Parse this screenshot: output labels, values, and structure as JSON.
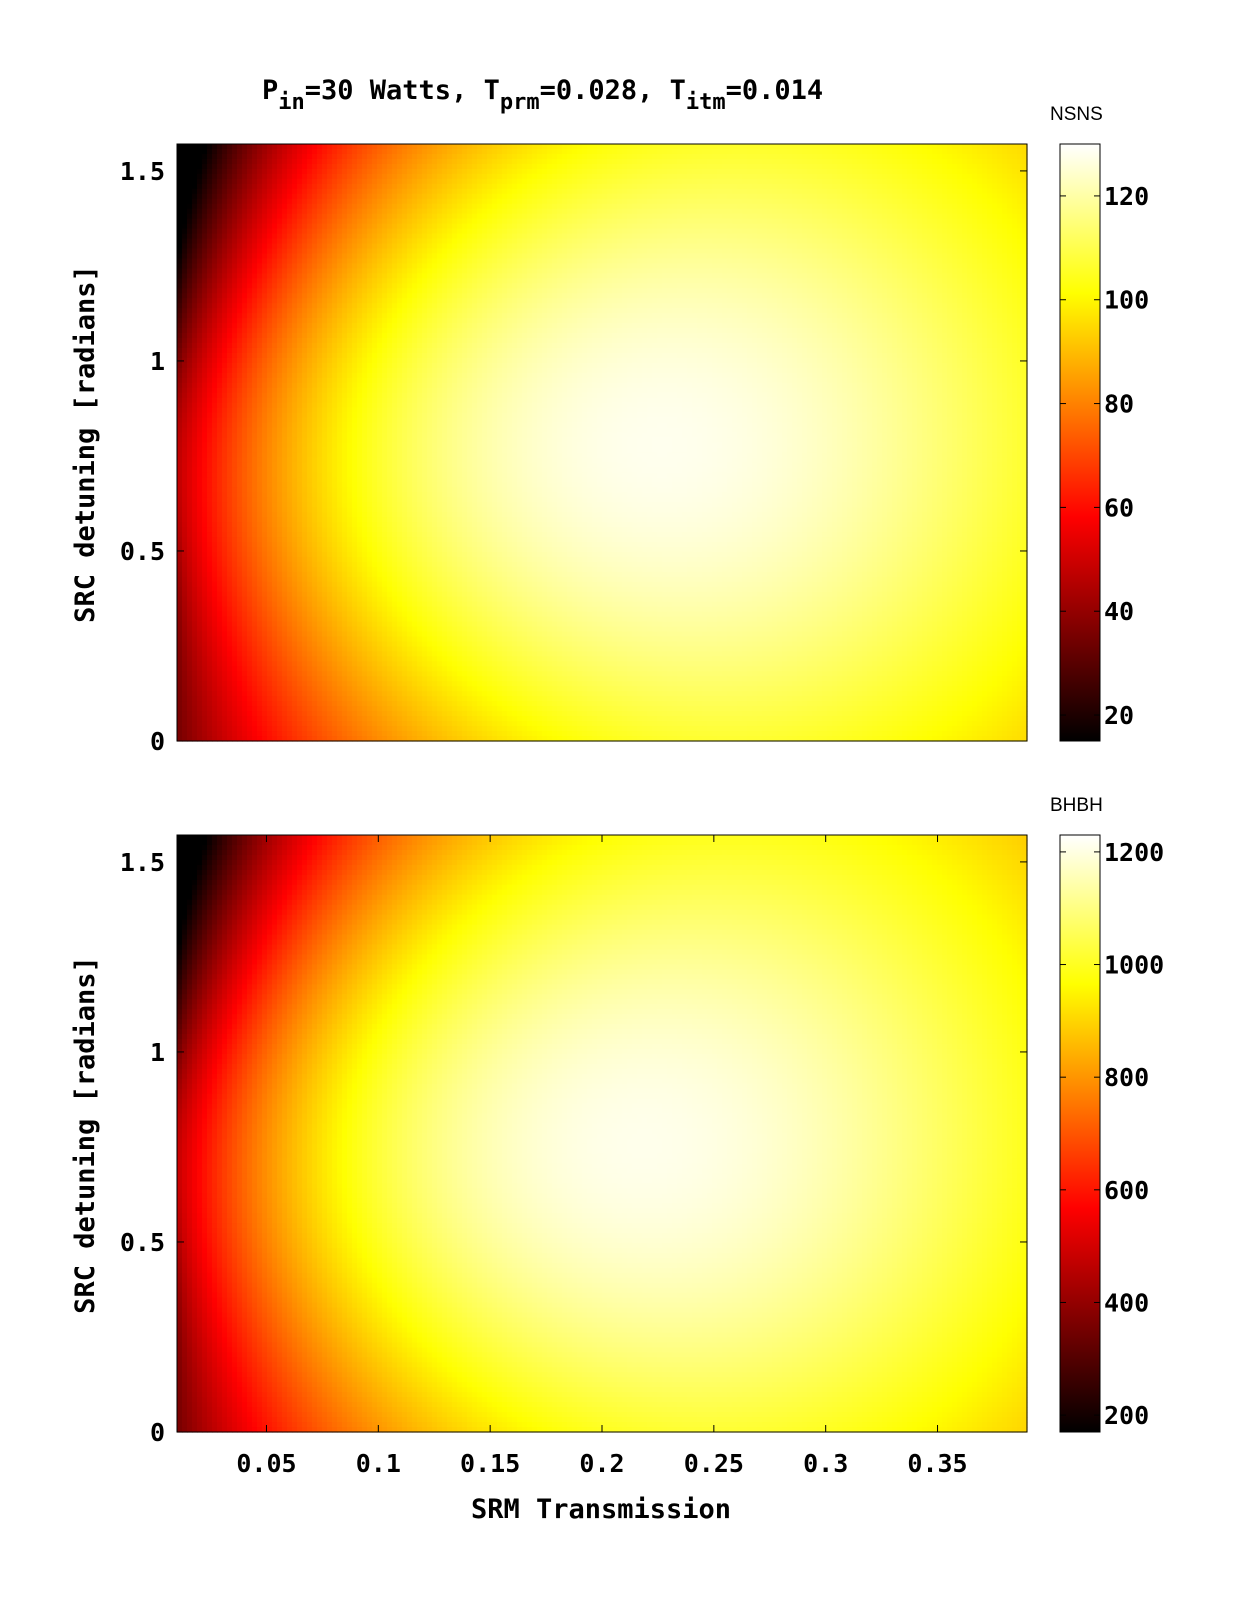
{
  "figure": {
    "title": {
      "parts": [
        {
          "text": "P",
          "sub": "in",
          "after": "=30 Watts, "
        },
        {
          "text": "T",
          "sub": "prm",
          "after": "=0.028, "
        },
        {
          "text": "T",
          "sub": "itm",
          "after": "=0.014"
        }
      ]
    },
    "xlabel": "SRM Transmission",
    "ylabel": "SRC detuning [radians]"
  },
  "colormap": {
    "name": "hot",
    "stops": [
      "#000000",
      "#ff0000",
      "#ffff00",
      "#ffffff"
    ]
  },
  "chart_data": [
    {
      "type": "heatmap",
      "name": "NSNS",
      "colorbar_label": "NSNS",
      "xlim": [
        0.01,
        0.39
      ],
      "ylim": [
        0,
        1.5708
      ],
      "xticks": [],
      "yticks": [
        0,
        0.5,
        1,
        1.5
      ],
      "ytick_labels": [
        "0",
        "0.5",
        "1",
        "1.5"
      ],
      "clim": [
        15,
        130
      ],
      "cticks": [
        20,
        40,
        60,
        80,
        100,
        120
      ],
      "ctick_labels": [
        "20",
        "40",
        "60",
        "80",
        "100",
        "120"
      ],
      "value_range_estimate": {
        "min": 15,
        "max": 130
      },
      "peak": {
        "x": 0.21,
        "y": 0.78,
        "value": 130
      },
      "minimum": {
        "x": 0.01,
        "y": 1.57,
        "value": 15
      },
      "grid": false
    },
    {
      "type": "heatmap",
      "name": "BHBH",
      "colorbar_label": "BHBH",
      "xlim": [
        0.01,
        0.39
      ],
      "ylim": [
        0,
        1.5708
      ],
      "xticks": [
        0.05,
        0.1,
        0.15,
        0.2,
        0.25,
        0.3,
        0.35
      ],
      "xtick_labels": [
        "0.05",
        "0.1",
        "0.15",
        "0.2",
        "0.25",
        "0.3",
        "0.35"
      ],
      "yticks": [
        0,
        0.5,
        1,
        1.5
      ],
      "ytick_labels": [
        "0",
        "0.5",
        "1",
        "1.5"
      ],
      "clim": [
        170,
        1230
      ],
      "cticks": [
        200,
        400,
        600,
        800,
        1000,
        1200
      ],
      "ctick_labels": [
        "200",
        "400",
        "600",
        "800",
        "1000",
        "1200"
      ],
      "value_range_estimate": {
        "min": 170,
        "max": 1230
      },
      "peak": {
        "x": 0.2,
        "y": 0.76,
        "value": 1230
      },
      "minimum": {
        "x": 0.01,
        "y": 1.57,
        "value": 170
      },
      "grid": false
    }
  ]
}
